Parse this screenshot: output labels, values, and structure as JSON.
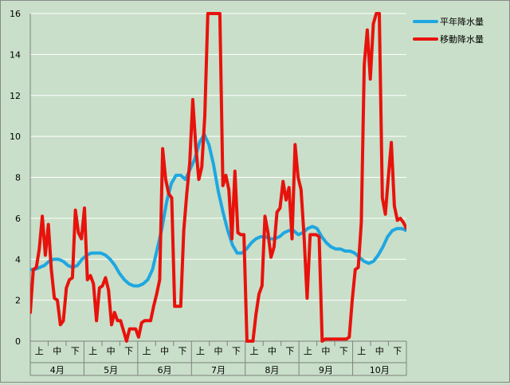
{
  "chart_data": {
    "type": "line",
    "ylim": [
      0,
      16
    ],
    "yticks": [
      "0",
      "2",
      "4",
      "6",
      "8",
      "10",
      "12",
      "14",
      "16"
    ],
    "grid": true,
    "legend": "top-right",
    "x_sub_labels": [
      "上",
      "中",
      "下"
    ],
    "months": [
      "4月",
      "5月",
      "6月",
      "7月",
      "8月",
      "9月",
      "10月"
    ],
    "series": [
      {
        "name": "平年降水量",
        "color": "#1ea7e1",
        "values": [
          3.5,
          3.5,
          3.6,
          3.7,
          3.9,
          4.0,
          4.0,
          3.9,
          3.7,
          3.6,
          3.7,
          4.0,
          4.2,
          4.3,
          4.3,
          4.3,
          4.2,
          4.0,
          3.7,
          3.3,
          3.0,
          2.8,
          2.7,
          2.7,
          2.8,
          3.0,
          3.5,
          4.5,
          5.5,
          6.8,
          7.7,
          8.1,
          8.1,
          7.9,
          8.4,
          8.9,
          9.7,
          10.1,
          9.6,
          8.6,
          7.3,
          6.3,
          5.4,
          4.7,
          4.3,
          4.3,
          4.5,
          4.8,
          5.0,
          5.1,
          5.1,
          5.0,
          5.0,
          5.1,
          5.3,
          5.4,
          5.4,
          5.2,
          5.3,
          5.5,
          5.6,
          5.5,
          5.1,
          4.8,
          4.6,
          4.5,
          4.5,
          4.4,
          4.4,
          4.3,
          4.1,
          3.9,
          3.8,
          3.9,
          4.2,
          4.6,
          5.1,
          5.4,
          5.5,
          5.5,
          5.4
        ]
      },
      {
        "name": "移動降水量",
        "color": "#e8120c",
        "values": [
          1.4,
          3.5,
          3.6,
          4.5,
          6.1,
          4.2,
          5.7,
          3.5,
          2.1,
          2.0,
          0.8,
          1.0,
          2.6,
          3.0,
          3.1,
          6.4,
          5.3,
          5.0,
          6.5,
          3.0,
          3.2,
          2.8,
          1.0,
          2.6,
          2.7,
          3.1,
          2.5,
          0.8,
          1.4,
          1.0,
          1.0,
          0.5,
          0.0,
          0.6,
          0.6,
          0.6,
          0.2,
          0.9,
          1.0,
          1.0,
          1.0,
          1.7,
          2.3,
          3.0,
          9.4,
          7.9,
          7.2,
          7.0,
          1.7,
          1.7,
          1.7,
          5.4,
          7.2,
          8.7,
          11.8,
          9.5,
          7.9,
          8.5,
          11.0,
          16.0,
          16.0,
          16.0,
          16.0,
          16.0,
          7.6,
          8.1,
          7.4,
          5.0,
          8.3,
          5.3,
          5.2,
          5.2,
          0.0,
          0.0,
          0.0,
          1.3,
          2.3,
          2.7,
          6.1,
          5.3,
          4.1,
          4.6,
          6.3,
          6.5,
          7.8,
          6.9,
          7.5,
          5.0,
          9.6,
          8.0,
          7.4,
          5.1,
          2.1,
          5.2,
          5.2,
          5.2,
          5.1,
          0.0,
          0.1,
          0.1,
          0.1,
          0.1,
          0.1,
          0.1,
          0.1,
          0.1,
          0.2,
          2.0,
          3.5,
          3.6,
          5.8,
          13.5,
          15.2,
          12.8,
          15.5,
          16.0,
          16.0,
          7.0,
          6.2,
          8.0,
          9.7,
          6.6,
          5.9,
          6.0,
          5.8,
          5.5
        ]
      }
    ]
  }
}
